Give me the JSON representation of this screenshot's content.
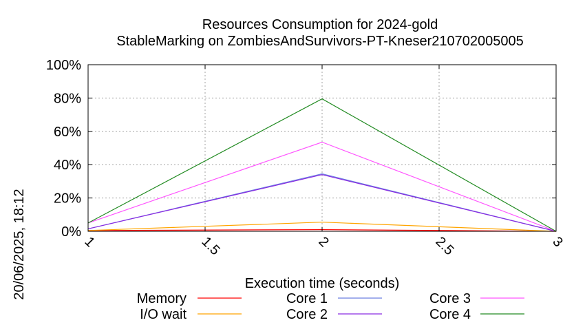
{
  "chart_data": {
    "type": "line",
    "title_line1": "Resources Consumption for 2024-gold",
    "title_line2": "StableMarking on ZombiesAndSurvivors-PT-Kneser210702005005",
    "xlabel": "Execution time (seconds)",
    "ylabel": "",
    "timestamp": "20/06/2025, 18:12",
    "xlim": [
      1,
      3
    ],
    "ylim": [
      0,
      100
    ],
    "x_ticks": [
      "1",
      "1.5",
      "2",
      "2.5",
      "3"
    ],
    "y_ticks": [
      "0%",
      "20%",
      "40%",
      "60%",
      "80%",
      "100%"
    ],
    "grid": true,
    "legend_position": "bottom",
    "x": [
      1,
      2,
      3
    ],
    "series": [
      {
        "name": "Memory",
        "color": "#ff0000",
        "values": [
          0.5,
          1,
          0
        ]
      },
      {
        "name": "I/O wait",
        "color": "#ffa500",
        "values": [
          0.5,
          5.5,
          0
        ]
      },
      {
        "name": "Core 1",
        "color": "#6b7fe0",
        "values": [
          1.5,
          34.5,
          0
        ]
      },
      {
        "name": "Core 2",
        "color": "#8a2be2",
        "values": [
          1.5,
          34,
          0
        ]
      },
      {
        "name": "Core 3",
        "color": "#ff55ff",
        "values": [
          5,
          53.5,
          0
        ]
      },
      {
        "name": "Core 4",
        "color": "#228b22",
        "values": [
          5,
          79.5,
          0
        ]
      }
    ]
  }
}
